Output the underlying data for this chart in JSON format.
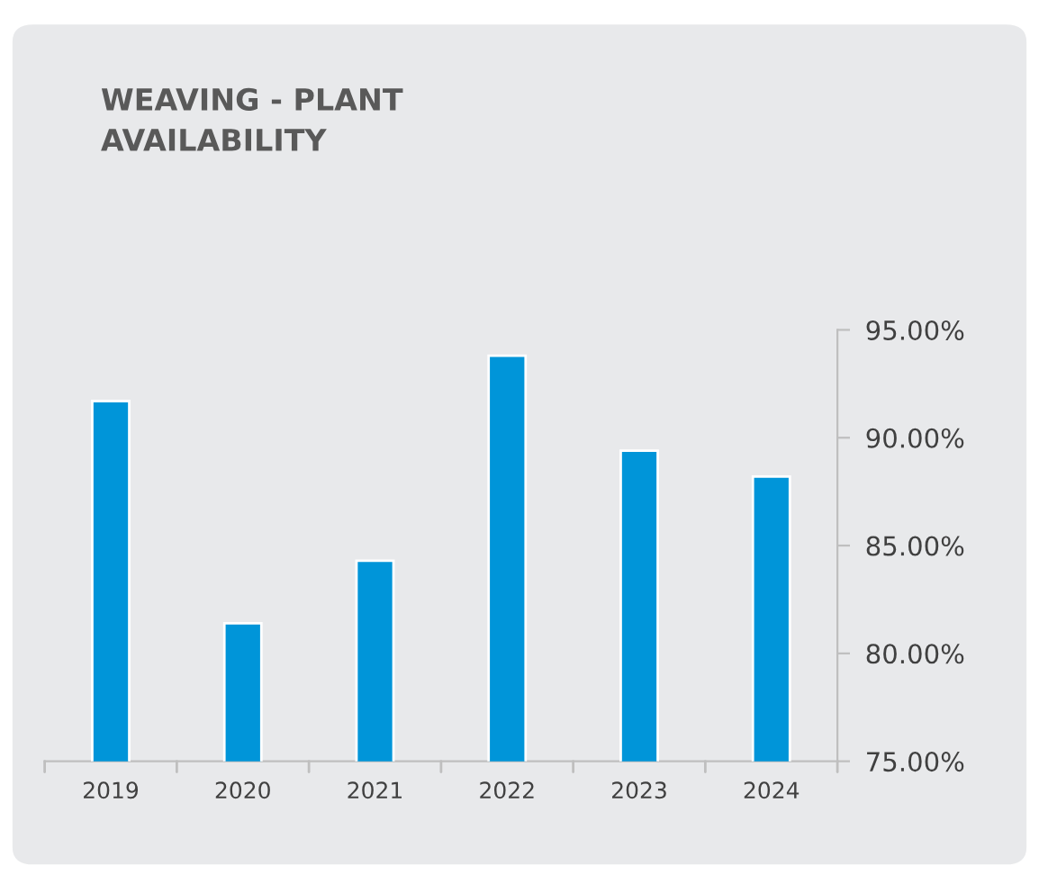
{
  "chart_data": {
    "type": "bar",
    "title": "WEAVING - PLANT\nAVAILABILITY",
    "categories": [
      "2019",
      "2020",
      "2021",
      "2022",
      "2023",
      "2024"
    ],
    "values": [
      91.7,
      81.4,
      84.3,
      93.8,
      89.4,
      88.2
    ],
    "color": "#0095d9",
    "ylim": [
      75,
      95
    ],
    "yticks": [
      {
        "value": 75,
        "label": "75.00%"
      },
      {
        "value": 80,
        "label": "80.00%"
      },
      {
        "value": 85,
        "label": "85.00%"
      },
      {
        "value": 90,
        "label": "90.00%"
      },
      {
        "value": 95,
        "label": "95.00%"
      }
    ],
    "grid": false,
    "legend": false
  }
}
